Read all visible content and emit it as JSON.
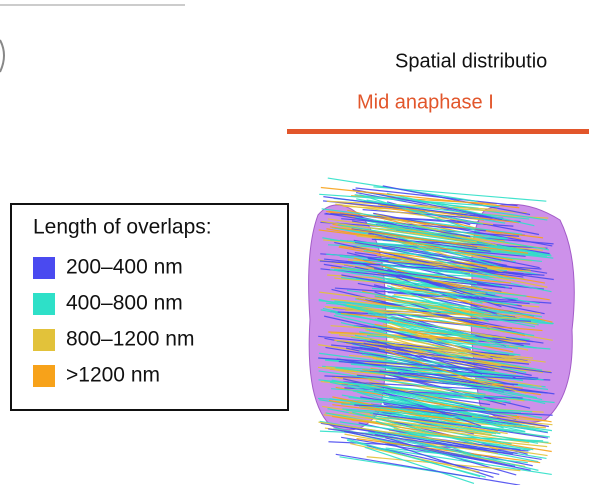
{
  "title": "Spatial distributio",
  "subtitle": "Mid anaphase I",
  "subtitle_color": "#e2562b",
  "legend": {
    "title": "Length of overlaps:",
    "items": [
      {
        "label": "200–400 nm",
        "color": "#4a4af0"
      },
      {
        "label": "400–800 nm",
        "color": "#2ee0c8"
      },
      {
        "label": "800–1200 nm",
        "color": "#e2c23a"
      },
      {
        "label": ">1200 nm",
        "color": "#f7a21a"
      }
    ]
  }
}
